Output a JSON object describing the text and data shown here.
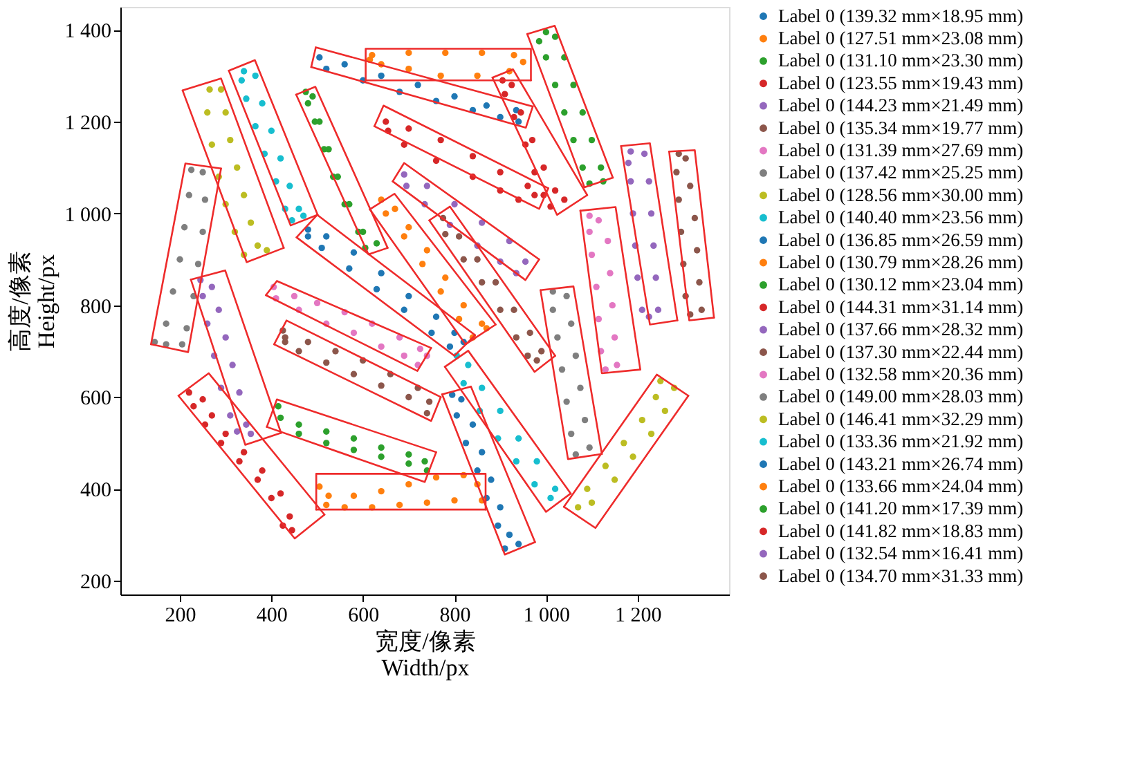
{
  "chart_data": {
    "type": "scatter",
    "xlabel": "宽度/像素\nWidth/px",
    "ylabel": "高度/像素\nHeight/px",
    "xlim": [
      70,
      1400
    ],
    "ylim": [
      170,
      1450
    ],
    "xticks": [
      200,
      400,
      600,
      800,
      {
        "value": 1000,
        "label": "1 000"
      },
      {
        "value": 1200,
        "label": "1 200"
      }
    ],
    "yticks": [
      200,
      400,
      600,
      800,
      {
        "value": 1000,
        "label": "1 000"
      },
      {
        "value": 1200,
        "label": "1 200"
      },
      {
        "value": 1400,
        "label": "1 400"
      }
    ],
    "legend": "right",
    "marker": "circle",
    "series": [
      {
        "type": "scatter",
        "name": "Label 0 (139.32 mm×18.95 mm)",
        "color": "#1f77b4",
        "x": [
          505,
          560,
          640,
          720,
          800,
          870,
          935,
          940,
          900,
          840,
          760,
          680,
          600,
          520
        ],
        "values": [
          1340,
          1325,
          1300,
          1280,
          1255,
          1235,
          1225,
          1200,
          1210,
          1225,
          1245,
          1265,
          1290,
          1315
        ]
      },
      {
        "type": "scatter",
        "name": "Label 0 (127.51 mm×23.08 mm)",
        "color": "#ff7f0e",
        "x": [
          620,
          700,
          780,
          860,
          930,
          950,
          920,
          850,
          770,
          700,
          640,
          615
        ],
        "values": [
          1345,
          1350,
          1350,
          1350,
          1345,
          1330,
          1310,
          1300,
          1300,
          1315,
          1325,
          1335
        ]
      },
      {
        "type": "scatter",
        "name": "Label 0 (131.10 mm×23.30 mm)",
        "color": "#2ca02c",
        "x": [
          1000,
          1020,
          1040,
          1060,
          1080,
          1100,
          1120,
          1125,
          1095,
          1080,
          1060,
          1040,
          1020,
          1000,
          985
        ],
        "values": [
          1395,
          1385,
          1340,
          1280,
          1220,
          1160,
          1100,
          1070,
          1065,
          1100,
          1160,
          1220,
          1280,
          1340,
          1375
        ]
      },
      {
        "type": "scatter",
        "name": "Label 0 (123.55 mm×19.43 mm)",
        "color": "#d62728",
        "x": [
          650,
          700,
          770,
          840,
          900,
          960,
          975,
          940,
          900,
          840,
          760,
          690,
          655
        ],
        "values": [
          1200,
          1185,
          1160,
          1125,
          1090,
          1060,
          1040,
          1030,
          1050,
          1080,
          1115,
          1150,
          1180
        ]
      },
      {
        "type": "scatter",
        "name": "Label 0 (144.23 mm×21.49 mm)",
        "color": "#9467bd",
        "x": [
          690,
          740,
          800,
          860,
          920,
          955,
          935,
          900,
          850,
          790,
          735,
          695
        ],
        "values": [
          1085,
          1060,
          1020,
          980,
          940,
          895,
          870,
          895,
          930,
          975,
          1020,
          1060
        ]
      },
      {
        "type": "scatter",
        "name": "Label 0 (135.34 mm×19.77 mm)",
        "color": "#8c564b",
        "x": [
          775,
          810,
          850,
          890,
          930,
          965,
          990,
          980,
          960,
          935,
          900,
          860,
          820,
          780
        ],
        "values": [
          990,
          950,
          900,
          850,
          790,
          740,
          700,
          680,
          690,
          730,
          790,
          850,
          900,
          955
        ]
      },
      {
        "type": "scatter",
        "name": "Label 0 (131.39 mm×27.69 mm)",
        "color": "#e377c2",
        "x": [
          405,
          450,
          500,
          560,
          620,
          680,
          725,
          740,
          720,
          690,
          640,
          580,
          520,
          460,
          410
        ],
        "values": [
          840,
          820,
          805,
          785,
          760,
          730,
          705,
          690,
          670,
          690,
          710,
          740,
          760,
          790,
          815
        ]
      },
      {
        "type": "scatter",
        "name": "Label 0 (137.42 mm×25.25 mm)",
        "color": "#7f7f7f",
        "x": [
          225,
          250,
          255,
          250,
          240,
          230,
          215,
          205,
          170,
          145,
          170,
          185,
          200,
          210,
          220
        ],
        "values": [
          1095,
          1090,
          1030,
          960,
          890,
          820,
          750,
          715,
          715,
          720,
          760,
          830,
          900,
          970,
          1040
        ]
      },
      {
        "type": "scatter",
        "name": "Label 0 (128.56 mm×30.00 mm)",
        "color": "#bcbd22",
        "x": [
          265,
          290,
          300,
          310,
          325,
          340,
          355,
          370,
          390,
          340,
          320,
          300,
          285,
          270,
          260
        ],
        "values": [
          1270,
          1270,
          1220,
          1160,
          1100,
          1040,
          980,
          930,
          920,
          910,
          960,
          1020,
          1080,
          1150,
          1220
        ]
      },
      {
        "type": "scatter",
        "name": "Label 0 (140.40 mm×23.56 mm)",
        "color": "#17becf",
        "x": [
          340,
          365,
          380,
          400,
          420,
          440,
          460,
          470,
          445,
          430,
          410,
          385,
          365,
          345,
          335
        ],
        "values": [
          1310,
          1300,
          1240,
          1180,
          1120,
          1060,
          1010,
          995,
          985,
          1010,
          1070,
          1130,
          1190,
          1250,
          1290
        ]
      },
      {
        "type": "scatter",
        "name": "Label 0 (136.85 mm×26.59 mm)",
        "color": "#1f77b4",
        "x": [
          480,
          520,
          580,
          640,
          700,
          760,
          800,
          820,
          790,
          750,
          690,
          630,
          570,
          510,
          480
        ],
        "values": [
          965,
          950,
          915,
          870,
          820,
          775,
          740,
          720,
          710,
          740,
          790,
          835,
          880,
          925,
          950
        ]
      },
      {
        "type": "scatter",
        "name": "Label 0 (130.79 mm×28.26 mm)",
        "color": "#ff7f0e",
        "x": [
          640,
          670,
          700,
          740,
          780,
          820,
          860,
          870,
          840,
          810,
          770,
          730,
          690,
          650
        ],
        "values": [
          1030,
          1010,
          970,
          920,
          860,
          800,
          760,
          750,
          730,
          770,
          830,
          890,
          950,
          1000
        ]
      },
      {
        "type": "scatter",
        "name": "Label 0 (130.12 mm×23.04 mm)",
        "color": "#2ca02c",
        "x": [
          475,
          490,
          505,
          525,
          545,
          570,
          600,
          630,
          605,
          590,
          560,
          535,
          515,
          495,
          480
        ],
        "values": [
          1265,
          1255,
          1200,
          1140,
          1080,
          1020,
          960,
          935,
          925,
          960,
          1020,
          1080,
          1140,
          1200,
          1240
        ]
      },
      {
        "type": "scatter",
        "name": "Label 0 (144.31 mm×31.14 mm)",
        "color": "#d62728",
        "x": [
          905,
          925,
          945,
          970,
          995,
          1020,
          1040,
          1010,
          995,
          975,
          955,
          930,
          910
        ],
        "values": [
          1290,
          1280,
          1220,
          1160,
          1100,
          1050,
          1030,
          1015,
          1040,
          1090,
          1150,
          1210,
          1260
        ]
      },
      {
        "type": "scatter",
        "name": "Label 0 (137.66 mm×28.32 mm)",
        "color": "#9467bd",
        "x": [
          1185,
          1215,
          1225,
          1230,
          1235,
          1240,
          1245,
          1225,
          1210,
          1200,
          1195,
          1190,
          1185,
          1180
        ],
        "values": [
          1135,
          1130,
          1070,
          1000,
          930,
          860,
          790,
          775,
          790,
          860,
          930,
          1000,
          1070,
          1110
        ]
      },
      {
        "type": "scatter",
        "name": "Label 0 (137.30 mm×22.44 mm)",
        "color": "#8c564b",
        "x": [
          1290,
          1305,
          1315,
          1325,
          1330,
          1335,
          1340,
          1315,
          1305,
          1300,
          1295,
          1290,
          1285
        ],
        "values": [
          1130,
          1120,
          1060,
          990,
          920,
          850,
          790,
          780,
          820,
          890,
          960,
          1030,
          1090
        ]
      },
      {
        "type": "scatter",
        "name": "Label 0 (132.58 mm×20.36 mm)",
        "color": "#e377c2",
        "x": [
          1095,
          1115,
          1135,
          1140,
          1145,
          1150,
          1155,
          1130,
          1120,
          1115,
          1110,
          1100,
          1095
        ],
        "values": [
          995,
          985,
          940,
          870,
          800,
          730,
          670,
          660,
          700,
          770,
          840,
          910,
          960
        ]
      },
      {
        "type": "scatter",
        "name": "Label 0 (149.00 mm×28.03 mm)",
        "color": "#7f7f7f",
        "x": [
          1015,
          1045,
          1055,
          1065,
          1075,
          1085,
          1095,
          1065,
          1055,
          1045,
          1035,
          1025,
          1015
        ],
        "values": [
          830,
          820,
          760,
          690,
          620,
          550,
          490,
          475,
          520,
          590,
          660,
          730,
          790
        ]
      },
      {
        "type": "scatter",
        "name": "Label 0 (146.41 mm×32.29 mm)",
        "color": "#bcbd22",
        "x": [
          1250,
          1280,
          1260,
          1230,
          1190,
          1150,
          1100,
          1070,
          1090,
          1130,
          1170,
          1210,
          1240
        ],
        "values": [
          635,
          620,
          570,
          520,
          470,
          420,
          370,
          360,
          400,
          450,
          500,
          550,
          600
        ]
      },
      {
        "type": "scatter",
        "name": "Label 0 (133.36 mm×21.92 mm)",
        "color": "#17becf",
        "x": [
          805,
          830,
          860,
          900,
          940,
          980,
          1020,
          1010,
          975,
          935,
          895,
          855,
          820
        ],
        "values": [
          690,
          670,
          620,
          570,
          510,
          460,
          400,
          380,
          410,
          460,
          510,
          570,
          630
        ]
      },
      {
        "type": "scatter",
        "name": "Label 0 (143.21 mm×26.74 mm)",
        "color": "#1f77b4",
        "x": [
          795,
          815,
          840,
          860,
          880,
          900,
          920,
          940,
          910,
          895,
          870,
          850,
          825,
          805
        ],
        "values": [
          605,
          595,
          540,
          480,
          420,
          360,
          300,
          280,
          270,
          320,
          380,
          440,
          500,
          560
        ]
      },
      {
        "type": "scatter",
        "name": "Label 0 (133.66 mm×24.04 mm)",
        "color": "#ff7f0e",
        "x": [
          505,
          525,
          580,
          640,
          700,
          760,
          820,
          850,
          860,
          800,
          740,
          680,
          620,
          560,
          520
        ],
        "values": [
          405,
          385,
          385,
          395,
          410,
          425,
          430,
          410,
          375,
          375,
          370,
          365,
          360,
          360,
          365
        ]
      },
      {
        "type": "scatter",
        "name": "Label 0 (141.20 mm×17.39 mm)",
        "color": "#2ca02c",
        "x": [
          415,
          420,
          460,
          520,
          580,
          640,
          700,
          735,
          740,
          700,
          640,
          580,
          520,
          460
        ],
        "values": [
          580,
          555,
          540,
          525,
          510,
          490,
          475,
          460,
          440,
          455,
          470,
          485,
          500,
          520
        ]
      },
      {
        "type": "scatter",
        "name": "Label 0 (141.82 mm×18.83 mm)",
        "color": "#d62728",
        "x": [
          220,
          250,
          270,
          300,
          340,
          380,
          420,
          440,
          445,
          425,
          400,
          370,
          330,
          290,
          255,
          230
        ],
        "values": [
          610,
          595,
          560,
          520,
          480,
          440,
          390,
          340,
          310,
          320,
          380,
          420,
          460,
          500,
          540,
          580
        ]
      },
      {
        "type": "scatter",
        "name": "Label 0 (132.54 mm×16.41 mm)",
        "color": "#9467bd",
        "x": [
          245,
          270,
          285,
          300,
          315,
          330,
          345,
          355,
          325,
          310,
          290,
          275,
          260,
          250
        ],
        "values": [
          855,
          840,
          790,
          730,
          670,
          610,
          540,
          520,
          525,
          560,
          620,
          690,
          760,
          820
        ]
      },
      {
        "type": "scatter",
        "name": "Label 0 (134.70 mm×31.33 mm)",
        "color": "#8c564b",
        "x": [
          425,
          430,
          480,
          540,
          600,
          660,
          720,
          745,
          740,
          700,
          640,
          580,
          520,
          460,
          430
        ],
        "values": [
          745,
          730,
          720,
          700,
          680,
          650,
          620,
          590,
          565,
          600,
          625,
          650,
          675,
          700,
          720
        ]
      },
      {
        "type": "line",
        "marker": "none",
        "color": "#ee2b2b",
        "x": [
          487,
          497,
          971
        ],
        "values": [
          1319,
          1362,
          1233
        ]
      },
      {
        "type": "line",
        "marker": "none",
        "color": "#ee2b2b",
        "x": [
          487,
          956,
          971
        ],
        "values": [
          1319,
          1187,
          1233
        ]
      },
      {
        "type": "line",
        "marker": "none",
        "color": "#ee2b2b",
        "x": [
          606,
          606,
          967,
          967
        ],
        "values": [
          1290,
          1359,
          1359,
          1290
        ]
      },
      {
        "type": "line",
        "marker": "none",
        "color": "#ee2b2b",
        "x": [
          606,
          967
        ],
        "values": [
          1290,
          1290
        ]
      },
      {
        "type": "line",
        "marker": "none",
        "color": "#ee2b2b",
        "x": [
          959,
          1019,
          1146
        ],
        "values": [
          1391,
          1409,
          1078
        ]
      },
      {
        "type": "line",
        "marker": "none",
        "color": "#ee2b2b",
        "x": [
          959,
          1084,
          1146
        ],
        "values": [
          1391,
          1057,
          1078
        ]
      },
      {
        "type": "line",
        "marker": "none",
        "color": "#ee2b2b",
        "x": [
          625,
          645,
          1005
        ],
        "values": [
          1190,
          1235,
          1055
        ]
      },
      {
        "type": "line",
        "marker": "none",
        "color": "#ee2b2b",
        "x": [
          625,
          985,
          1005
        ],
        "values": [
          1190,
          1010,
          1055
        ]
      },
      {
        "type": "line",
        "marker": "none",
        "color": "#ee2b2b",
        "x": [
          665,
          690,
          985
        ],
        "values": [
          1070,
          1110,
          900
        ]
      },
      {
        "type": "line",
        "marker": "none",
        "color": "#ee2b2b",
        "x": [
          665,
          955,
          985
        ],
        "values": [
          1070,
          855,
          900
        ]
      },
      {
        "type": "line",
        "marker": "none",
        "color": "#ee2b2b",
        "x": [
          745,
          790,
          1020
        ],
        "values": [
          985,
          1015,
          690
        ]
      },
      {
        "type": "line",
        "marker": "none",
        "color": "#ee2b2b",
        "x": [
          745,
          975,
          1020
        ],
        "values": [
          985,
          655,
          690
        ]
      },
      {
        "type": "line",
        "marker": "none",
        "color": "#ee2b2b",
        "x": [
          388,
          412,
          749
        ],
        "values": [
          822,
          853,
          707
        ]
      },
      {
        "type": "line",
        "marker": "none",
        "color": "#ee2b2b",
        "x": [
          388,
          719,
          749
        ],
        "values": [
          822,
          657,
          707
        ]
      },
      {
        "type": "line",
        "marker": "none",
        "color": "#ee2b2b",
        "x": [
          137,
          212,
          290
        ],
        "values": [
          715,
          1109,
          1098
        ]
      },
      {
        "type": "line",
        "marker": "none",
        "color": "#ee2b2b",
        "x": [
          137,
          218,
          290
        ],
        "values": [
          715,
          698,
          1098
        ]
      },
      {
        "type": "line",
        "marker": "none",
        "color": "#ee2b2b",
        "x": [
          206,
          290,
          427
        ],
        "values": [
          1268,
          1294,
          925
        ]
      },
      {
        "type": "line",
        "marker": "none",
        "color": "#ee2b2b",
        "x": [
          206,
          346,
          427
        ],
        "values": [
          1268,
          894,
          925
        ]
      },
      {
        "type": "line",
        "marker": "none",
        "color": "#ee2b2b",
        "x": [
          307,
          364,
          501
        ],
        "values": [
          1311,
          1334,
          997
        ]
      },
      {
        "type": "line",
        "marker": "none",
        "color": "#ee2b2b",
        "x": [
          307,
          442,
          501
        ],
        "values": [
          1311,
          974,
          997
        ]
      },
      {
        "type": "line",
        "marker": "none",
        "color": "#ee2b2b",
        "x": [
          455,
          500,
          845
        ],
        "values": [
          948,
          997,
          735
        ]
      },
      {
        "type": "line",
        "marker": "none",
        "color": "#ee2b2b",
        "x": [
          455,
          800,
          845
        ],
        "values": [
          948,
          690,
          735
        ]
      },
      {
        "type": "line",
        "marker": "none",
        "color": "#ee2b2b",
        "x": [
          615,
          669,
          890
        ],
        "values": [
          1009,
          1043,
          758
        ]
      },
      {
        "type": "line",
        "marker": "none",
        "color": "#ee2b2b",
        "x": [
          615,
          824,
          890
        ],
        "values": [
          1009,
          715,
          758
        ]
      },
      {
        "type": "line",
        "marker": "none",
        "color": "#ee2b2b",
        "x": [
          454,
          496,
          654
        ],
        "values": [
          1259,
          1276,
          925
        ]
      },
      {
        "type": "line",
        "marker": "none",
        "color": "#ee2b2b",
        "x": [
          454,
          612,
          654
        ],
        "values": [
          1259,
          911,
          925
        ]
      },
      {
        "type": "line",
        "marker": "none",
        "color": "#ee2b2b",
        "x": [
          883,
          928,
          1090
        ],
        "values": [
          1296,
          1314,
          1040
        ]
      },
      {
        "type": "line",
        "marker": "none",
        "color": "#ee2b2b",
        "x": [
          883,
          1024,
          1090
        ],
        "values": [
          1296,
          997,
          1040
        ]
      },
      {
        "type": "line",
        "marker": "none",
        "color": "#ee2b2b",
        "x": [
          1164,
          1227,
          1287
        ],
        "values": [
          1147,
          1153,
          767
        ]
      },
      {
        "type": "line",
        "marker": "none",
        "color": "#ee2b2b",
        "x": [
          1164,
          1227,
          1287
        ],
        "values": [
          1147,
          758,
          767
        ]
      },
      {
        "type": "line",
        "marker": "none",
        "color": "#ee2b2b",
        "x": [
          1269,
          1325,
          1367
        ],
        "values": [
          1135,
          1138,
          773
        ]
      },
      {
        "type": "line",
        "marker": "none",
        "color": "#ee2b2b",
        "x": [
          1269,
          1313,
          1367
        ],
        "values": [
          1135,
          767,
          773
        ]
      },
      {
        "type": "line",
        "marker": "none",
        "color": "#ee2b2b",
        "x": [
          1075,
          1152,
          1206
        ],
        "values": [
          1006,
          1014,
          660
        ]
      },
      {
        "type": "line",
        "marker": "none",
        "color": "#ee2b2b",
        "x": [
          1075,
          1122,
          1206
        ],
        "values": [
          1006,
          652,
          660
        ]
      },
      {
        "type": "line",
        "marker": "none",
        "color": "#ee2b2b",
        "x": [
          988,
          1060,
          1122
        ],
        "values": [
          833,
          841,
          476
        ]
      },
      {
        "type": "line",
        "marker": "none",
        "color": "#ee2b2b",
        "x": [
          988,
          1048,
          1122
        ],
        "values": [
          833,
          465,
          476
        ]
      },
      {
        "type": "line",
        "marker": "none",
        "color": "#ee2b2b",
        "x": [
          1039,
          1242,
          1311
        ],
        "values": [
          361,
          649,
          603
        ]
      },
      {
        "type": "line",
        "marker": "none",
        "color": "#ee2b2b",
        "x": [
          1039,
          1108,
          1311
        ],
        "values": [
          361,
          315,
          603
        ]
      },
      {
        "type": "line",
        "marker": "none",
        "color": "#ee2b2b",
        "x": [
          779,
          830,
          1054
        ],
        "values": [
          666,
          701,
          390
        ]
      },
      {
        "type": "line",
        "marker": "none",
        "color": "#ee2b2b",
        "x": [
          779,
          1000,
          1054
        ],
        "values": [
          666,
          350,
          390
        ]
      },
      {
        "type": "line",
        "marker": "none",
        "color": "#ee2b2b",
        "x": [
          773,
          836,
          976
        ],
        "values": [
          606,
          623,
          284
        ]
      },
      {
        "type": "line",
        "marker": "none",
        "color": "#ee2b2b",
        "x": [
          773,
          910,
          976
        ],
        "values": [
          606,
          257,
          284
        ]
      },
      {
        "type": "line",
        "marker": "none",
        "color": "#ee2b2b",
        "x": [
          498,
          498,
          868,
          868
        ],
        "values": [
          355,
          433,
          433,
          355
        ]
      },
      {
        "type": "line",
        "marker": "none",
        "color": "#ee2b2b",
        "x": [
          498,
          868
        ],
        "values": [
          355,
          355
        ]
      },
      {
        "type": "line",
        "marker": "none",
        "color": "#ee2b2b",
        "x": [
          390,
          412,
          760
        ],
        "values": [
          535,
          595,
          480
        ]
      },
      {
        "type": "line",
        "marker": "none",
        "color": "#ee2b2b",
        "x": [
          390,
          735,
          760
        ],
        "values": [
          535,
          415,
          480
        ]
      },
      {
        "type": "line",
        "marker": "none",
        "color": "#ee2b2b",
        "x": [
          197,
          263,
          516
        ],
        "values": [
          603,
          652,
          344
        ]
      },
      {
        "type": "line",
        "marker": "none",
        "color": "#ee2b2b",
        "x": [
          197,
          451,
          516
        ],
        "values": [
          603,
          292,
          344
        ]
      },
      {
        "type": "line",
        "marker": "none",
        "color": "#ee2b2b",
        "x": [
          224,
          299,
          421
        ],
        "values": [
          856,
          876,
          522
        ]
      },
      {
        "type": "line",
        "marker": "none",
        "color": "#ee2b2b",
        "x": [
          224,
          343,
          421
        ],
        "values": [
          856,
          496,
          522
        ]
      },
      {
        "type": "line",
        "marker": "none",
        "color": "#ee2b2b",
        "x": [
          406,
          433,
          770
        ],
        "values": [
          715,
          767,
          600
        ]
      },
      {
        "type": "line",
        "marker": "none",
        "color": "#ee2b2b",
        "x": [
          406,
          749,
          770
        ],
        "values": [
          715,
          548,
          600
        ]
      }
    ]
  }
}
